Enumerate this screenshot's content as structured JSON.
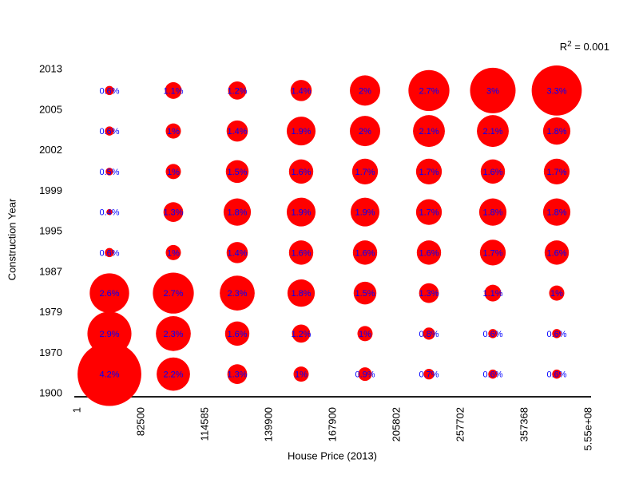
{
  "chart_data": {
    "type": "scatter",
    "subtype": "bubble-grid",
    "title": "",
    "xlabel": "House Price (2013)",
    "ylabel": "Construction Year",
    "annotation": {
      "r_label": "R",
      "exponent": "2",
      "value": " = 0.001"
    },
    "x_ticks": [
      "1",
      "82500",
      "114585",
      "139900",
      "167900",
      "205802",
      "257702",
      "357368",
      "5.55e+08"
    ],
    "y_ticks": [
      "2013",
      "2005",
      "2002",
      "1999",
      "1995",
      "1987",
      "1979",
      "1970",
      "1900"
    ],
    "x_bands": [
      "1-82500",
      "82500-114585",
      "114585-139900",
      "139900-167900",
      "167900-205802",
      "205802-257702",
      "257702-357368",
      "357368-5.55e+08"
    ],
    "y_bands": [
      "2005-2013",
      "2002-2005",
      "1999-2002",
      "1995-1999",
      "1987-1995",
      "1979-1987",
      "1970-1979",
      "1900-1970"
    ],
    "value_unit": "%",
    "values_pct": [
      [
        0.6,
        1.1,
        1.2,
        1.4,
        2.0,
        2.7,
        3.0,
        3.3
      ],
      [
        0.6,
        1.0,
        1.4,
        1.9,
        2.0,
        2.1,
        2.1,
        1.8
      ],
      [
        0.5,
        1.0,
        1.5,
        1.6,
        1.7,
        1.7,
        1.6,
        1.7
      ],
      [
        0.4,
        1.3,
        1.8,
        1.9,
        1.9,
        1.7,
        1.8,
        1.8
      ],
      [
        0.6,
        1.0,
        1.4,
        1.6,
        1.6,
        1.6,
        1.7,
        1.6
      ],
      [
        2.6,
        2.7,
        2.3,
        1.8,
        1.5,
        1.3,
        1.1,
        1.0
      ],
      [
        2.9,
        2.3,
        1.6,
        1.2,
        1.0,
        0.8,
        0.6,
        0.6
      ],
      [
        4.2,
        2.2,
        1.3,
        1.0,
        0.9,
        0.7,
        0.6,
        0.6
      ]
    ],
    "bubble_color": "#FF0000",
    "label_color": "#0000FF",
    "axis_color": "#000000",
    "grid": false,
    "legend": false,
    "x_tick_rotation_deg": -90
  }
}
